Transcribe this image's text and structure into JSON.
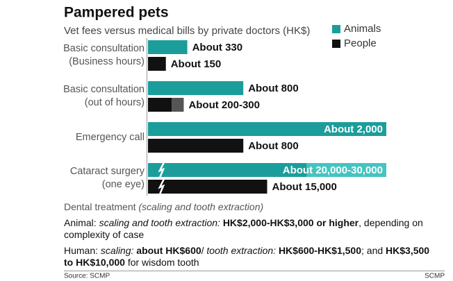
{
  "chart_data": {
    "type": "bar",
    "orientation": "horizontal",
    "title": "Pampered pets",
    "subtitle": "Vet fees versus medical bills by private doctors (HK$)",
    "categories": [
      [
        "Basic consultation",
        "(Business hours)"
      ],
      [
        "Basic consultation",
        "(out of hours)"
      ],
      [
        "Emergency call"
      ],
      [
        "Cataract surgery",
        "(one eye)"
      ]
    ],
    "series": [
      {
        "name": "Animals",
        "color": "#1b9e9b",
        "range_color": "#45c4c1",
        "values": [
          330,
          800,
          2000,
          20000
        ],
        "values_high": [
          null,
          null,
          null,
          30000
        ],
        "value_labels": [
          "About 330",
          "About 800",
          "About 2,000",
          "About 20,000-30,000"
        ]
      },
      {
        "name": "People",
        "color": "#111111",
        "range_color": "#555555",
        "values": [
          150,
          200,
          800,
          15000
        ],
        "values_high": [
          null,
          300,
          null,
          null
        ],
        "value_labels": [
          "About 150",
          "About 200-300",
          "About 800",
          "About 15,000"
        ]
      }
    ],
    "xlim_by_category": [
      [
        0,
        2000
      ],
      [
        0,
        2000
      ],
      [
        0,
        2000
      ],
      [
        0,
        30000
      ]
    ],
    "axis_break": [
      false,
      false,
      false,
      true
    ],
    "legend": "top-right"
  },
  "notes": {
    "heading": "Dental treatment",
    "heading_detail": "(scaling and tooth extraction)",
    "animal": [
      "Animal: ",
      "scaling and tooth extraction: ",
      "HK$2,000-HK$3,000 or higher",
      ", depending on complexity of case"
    ],
    "human": [
      "Human: ",
      "scaling: ",
      "about HK$600",
      "/ ",
      "tooth extraction: ",
      "HK$600-HK$1,500",
      "; and ",
      "HK$3,500 to HK$10,000",
      " for wisdom tooth"
    ]
  },
  "footer": {
    "source": "Source: SCMP",
    "credit": "SCMP"
  }
}
